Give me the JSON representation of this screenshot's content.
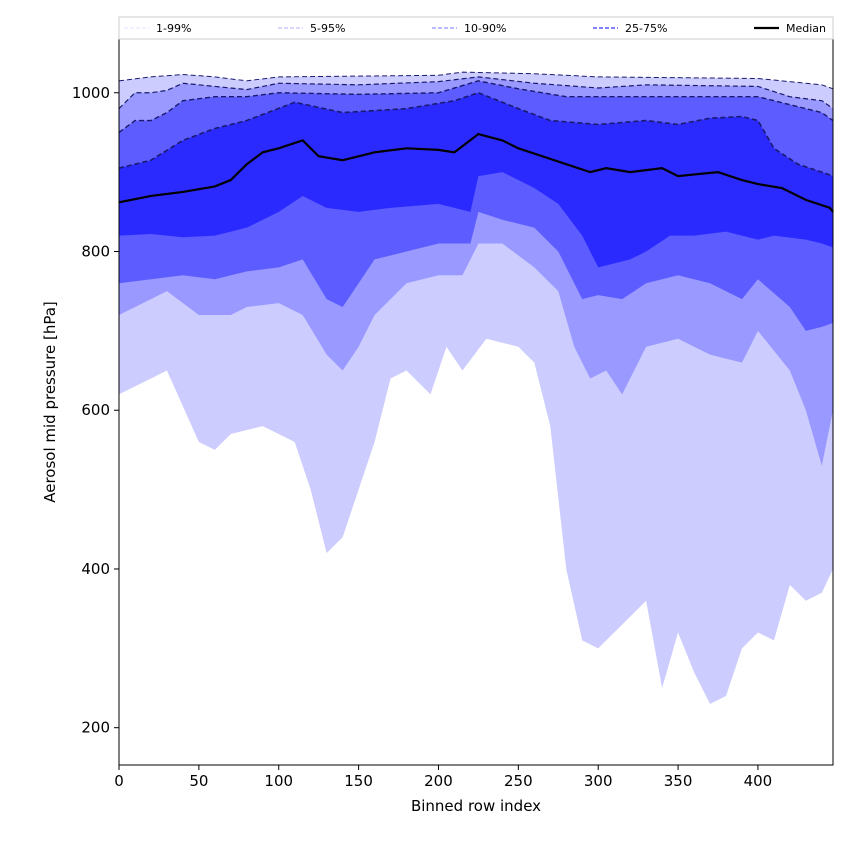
{
  "chart_data": {
    "type": "area",
    "xlabel": "Binned row index",
    "ylabel": "Aerosol mid pressure [hPa]",
    "xlim": [
      0,
      447
    ],
    "ylim": [
      153,
      1069
    ],
    "xticks": [
      0,
      50,
      100,
      150,
      200,
      250,
      300,
      350,
      400
    ],
    "yticks": [
      200,
      400,
      600,
      800,
      1000
    ],
    "legend_placement": "top",
    "colors": {
      "1-99%": "#ccccff",
      "5-95%": "#9999ff",
      "10-90%": "#5c5cff",
      "25-75%": "#2a2aff",
      "Median": "#000000",
      "bound_line": "#1a1a6e"
    },
    "legend": [
      "1-99%",
      "5-95%",
      "10-90%",
      "25-75%",
      "Median"
    ],
    "percentiles": {
      "p99": [
        [
          0,
          1015
        ],
        [
          20,
          1020
        ],
        [
          40,
          1023
        ],
        [
          60,
          1020
        ],
        [
          80,
          1015
        ],
        [
          100,
          1020
        ],
        [
          150,
          1021
        ],
        [
          200,
          1022
        ],
        [
          215,
          1026
        ],
        [
          260,
          1024
        ],
        [
          300,
          1020
        ],
        [
          350,
          1019
        ],
        [
          400,
          1018
        ],
        [
          430,
          1012
        ],
        [
          440,
          1010
        ],
        [
          447,
          1005
        ]
      ],
      "p95": [
        [
          0,
          980
        ],
        [
          10,
          1000
        ],
        [
          20,
          1000
        ],
        [
          30,
          1003
        ],
        [
          40,
          1012
        ],
        [
          60,
          1008
        ],
        [
          80,
          1004
        ],
        [
          100,
          1012
        ],
        [
          150,
          1010
        ],
        [
          200,
          1014
        ],
        [
          225,
          1020
        ],
        [
          260,
          1012
        ],
        [
          300,
          1006
        ],
        [
          330,
          1010
        ],
        [
          400,
          1008
        ],
        [
          420,
          995
        ],
        [
          440,
          990
        ],
        [
          447,
          980
        ]
      ],
      "p90": [
        [
          0,
          950
        ],
        [
          10,
          965
        ],
        [
          20,
          965
        ],
        [
          30,
          975
        ],
        [
          40,
          990
        ],
        [
          60,
          995
        ],
        [
          80,
          995
        ],
        [
          100,
          1000
        ],
        [
          150,
          998
        ],
        [
          200,
          1000
        ],
        [
          225,
          1015
        ],
        [
          250,
          1005
        ],
        [
          280,
          995
        ],
        [
          300,
          995
        ],
        [
          350,
          995
        ],
        [
          400,
          995
        ],
        [
          420,
          985
        ],
        [
          440,
          975
        ],
        [
          447,
          965
        ]
      ],
      "p75": [
        [
          0,
          905
        ],
        [
          20,
          915
        ],
        [
          40,
          940
        ],
        [
          60,
          955
        ],
        [
          80,
          965
        ],
        [
          110,
          988
        ],
        [
          140,
          975
        ],
        [
          180,
          980
        ],
        [
          210,
          990
        ],
        [
          225,
          1000
        ],
        [
          250,
          980
        ],
        [
          270,
          965
        ],
        [
          300,
          960
        ],
        [
          330,
          965
        ],
        [
          350,
          960
        ],
        [
          370,
          968
        ],
        [
          390,
          970
        ],
        [
          400,
          965
        ],
        [
          410,
          930
        ],
        [
          425,
          910
        ],
        [
          440,
          900
        ],
        [
          447,
          895
        ]
      ],
      "median": [
        [
          0,
          862
        ],
        [
          20,
          870
        ],
        [
          40,
          875
        ],
        [
          60,
          882
        ],
        [
          70,
          890
        ],
        [
          80,
          910
        ],
        [
          90,
          925
        ],
        [
          100,
          930
        ],
        [
          115,
          940
        ],
        [
          125,
          920
        ],
        [
          140,
          915
        ],
        [
          150,
          920
        ],
        [
          160,
          925
        ],
        [
          180,
          930
        ],
        [
          200,
          928
        ],
        [
          210,
          925
        ],
        [
          225,
          948
        ],
        [
          240,
          940
        ],
        [
          250,
          930
        ],
        [
          265,
          920
        ],
        [
          280,
          910
        ],
        [
          295,
          900
        ],
        [
          305,
          905
        ],
        [
          320,
          900
        ],
        [
          340,
          905
        ],
        [
          350,
          895
        ],
        [
          365,
          898
        ],
        [
          375,
          900
        ],
        [
          390,
          890
        ],
        [
          400,
          885
        ],
        [
          415,
          880
        ],
        [
          430,
          865
        ],
        [
          445,
          855
        ],
        [
          447,
          850
        ]
      ],
      "p25": [
        [
          0,
          820
        ],
        [
          20,
          822
        ],
        [
          40,
          818
        ],
        [
          60,
          820
        ],
        [
          80,
          830
        ],
        [
          100,
          850
        ],
        [
          115,
          870
        ],
        [
          130,
          855
        ],
        [
          150,
          850
        ],
        [
          170,
          855
        ],
        [
          200,
          860
        ],
        [
          220,
          850
        ],
        [
          225,
          895
        ],
        [
          240,
          900
        ],
        [
          260,
          880
        ],
        [
          275,
          860
        ],
        [
          290,
          820
        ],
        [
          300,
          780
        ],
        [
          320,
          790
        ],
        [
          330,
          800
        ],
        [
          345,
          820
        ],
        [
          360,
          820
        ],
        [
          380,
          825
        ],
        [
          400,
          815
        ],
        [
          410,
          820
        ],
        [
          430,
          815
        ],
        [
          440,
          810
        ],
        [
          447,
          805
        ]
      ],
      "p10": [
        [
          0,
          760
        ],
        [
          20,
          765
        ],
        [
          40,
          770
        ],
        [
          60,
          765
        ],
        [
          80,
          775
        ],
        [
          100,
          780
        ],
        [
          115,
          790
        ],
        [
          130,
          740
        ],
        [
          140,
          730
        ],
        [
          150,
          760
        ],
        [
          160,
          790
        ],
        [
          180,
          800
        ],
        [
          200,
          810
        ],
        [
          220,
          810
        ],
        [
          225,
          850
        ],
        [
          240,
          840
        ],
        [
          260,
          830
        ],
        [
          275,
          800
        ],
        [
          290,
          740
        ],
        [
          300,
          745
        ],
        [
          315,
          740
        ],
        [
          330,
          760
        ],
        [
          350,
          770
        ],
        [
          370,
          760
        ],
        [
          390,
          740
        ],
        [
          400,
          765
        ],
        [
          420,
          730
        ],
        [
          430,
          700
        ],
        [
          440,
          705
        ],
        [
          447,
          710
        ]
      ],
      "p5": [
        [
          0,
          720
        ],
        [
          20,
          740
        ],
        [
          30,
          750
        ],
        [
          50,
          720
        ],
        [
          70,
          720
        ],
        [
          80,
          730
        ],
        [
          100,
          735
        ],
        [
          115,
          720
        ],
        [
          130,
          670
        ],
        [
          140,
          650
        ],
        [
          150,
          680
        ],
        [
          160,
          720
        ],
        [
          180,
          760
        ],
        [
          200,
          770
        ],
        [
          215,
          770
        ],
        [
          225,
          810
        ],
        [
          240,
          810
        ],
        [
          260,
          780
        ],
        [
          275,
          750
        ],
        [
          285,
          680
        ],
        [
          295,
          640
        ],
        [
          305,
          650
        ],
        [
          315,
          620
        ],
        [
          330,
          680
        ],
        [
          350,
          690
        ],
        [
          370,
          670
        ],
        [
          390,
          660
        ],
        [
          400,
          700
        ],
        [
          420,
          650
        ],
        [
          430,
          600
        ],
        [
          440,
          530
        ],
        [
          447,
          600
        ]
      ],
      "p1": [
        [
          0,
          620
        ],
        [
          20,
          640
        ],
        [
          30,
          650
        ],
        [
          50,
          560
        ],
        [
          60,
          550
        ],
        [
          70,
          570
        ],
        [
          90,
          580
        ],
        [
          110,
          560
        ],
        [
          120,
          500
        ],
        [
          130,
          420
        ],
        [
          140,
          440
        ],
        [
          150,
          500
        ],
        [
          160,
          560
        ],
        [
          170,
          640
        ],
        [
          180,
          650
        ],
        [
          195,
          620
        ],
        [
          205,
          680
        ],
        [
          215,
          650
        ],
        [
          230,
          690
        ],
        [
          250,
          680
        ],
        [
          260,
          660
        ],
        [
          270,
          580
        ],
        [
          280,
          400
        ],
        [
          290,
          310
        ],
        [
          300,
          300
        ],
        [
          310,
          320
        ],
        [
          320,
          340
        ],
        [
          330,
          360
        ],
        [
          340,
          250
        ],
        [
          350,
          320
        ],
        [
          360,
          270
        ],
        [
          370,
          230
        ],
        [
          380,
          240
        ],
        [
          390,
          300
        ],
        [
          400,
          320
        ],
        [
          410,
          310
        ],
        [
          420,
          380
        ],
        [
          430,
          360
        ],
        [
          440,
          370
        ],
        [
          447,
          400
        ]
      ]
    },
    "bands": [
      {
        "name": "1-99%",
        "lower": "p1",
        "upper": "p99"
      },
      {
        "name": "5-95%",
        "lower": "p5",
        "upper": "p95"
      },
      {
        "name": "10-90%",
        "lower": "p10",
        "upper": "p90"
      },
      {
        "name": "25-75%",
        "lower": "p25",
        "upper": "p75"
      }
    ]
  }
}
